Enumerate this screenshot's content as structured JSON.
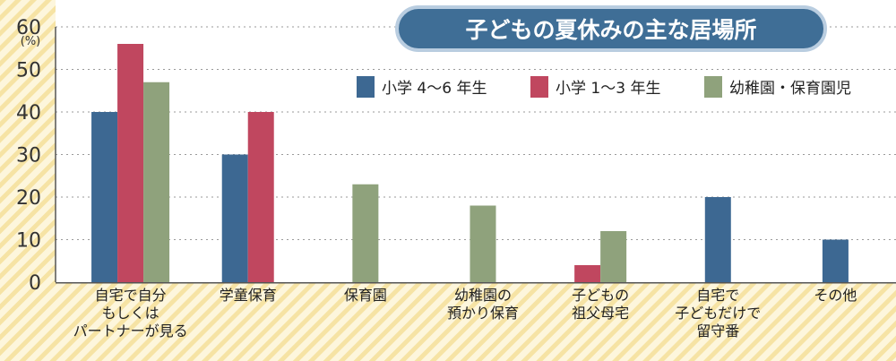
{
  "chart_data": {
    "type": "bar",
    "title": "子どもの夏休みの主な居場所",
    "ylabel": "(%)",
    "ylim": [
      0,
      60
    ],
    "yticks": [
      0,
      10,
      20,
      30,
      40,
      50,
      60
    ],
    "grid": true,
    "legend_position": "top-right",
    "categories": [
      [
        "自宅で自分",
        "もしくは",
        "パートナーが見る"
      ],
      [
        "学童保育"
      ],
      [
        "保育園"
      ],
      [
        "幼稚園の",
        "預かり保育"
      ],
      [
        "子どもの",
        "祖父母宅"
      ],
      [
        "自宅で",
        "子どもだけで",
        "留守番"
      ],
      [
        "その他"
      ]
    ],
    "series": [
      {
        "name": "小学 4〜6 年生",
        "color": "#3d6892",
        "values": [
          40,
          30,
          null,
          null,
          null,
          20,
          10
        ]
      },
      {
        "name": "小学 1〜3 年生",
        "color": "#c0475f",
        "values": [
          56,
          40,
          null,
          null,
          4,
          null,
          null
        ]
      },
      {
        "name": "幼稚園・保育園児",
        "color": "#8fa27c",
        "values": [
          47,
          null,
          23,
          18,
          12,
          null,
          null
        ]
      }
    ]
  }
}
